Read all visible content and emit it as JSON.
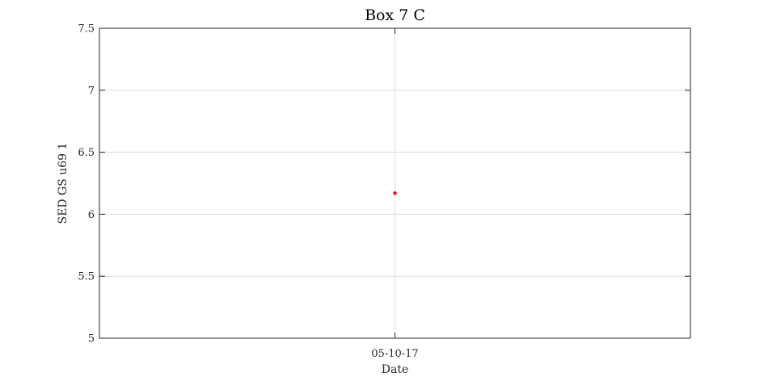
{
  "chart_data": {
    "type": "scatter",
    "title": "Box 7 C",
    "xlabel": "Date",
    "ylabel": "SED GS u69 1",
    "x": [
      "05-10-17"
    ],
    "y": [
      6.17
    ],
    "ylim": [
      5,
      7.5
    ],
    "yticks": [
      5,
      5.5,
      6,
      6.5,
      7,
      7.5
    ],
    "yticklabels": [
      "5",
      "5.5",
      "6",
      "6.5",
      "7",
      "7.5"
    ],
    "xticklabels": [
      "05-10-17"
    ],
    "grid": true,
    "marker_color": "#ff0000",
    "frame_color": "#262626",
    "grid_color": "#dcdcdc"
  }
}
